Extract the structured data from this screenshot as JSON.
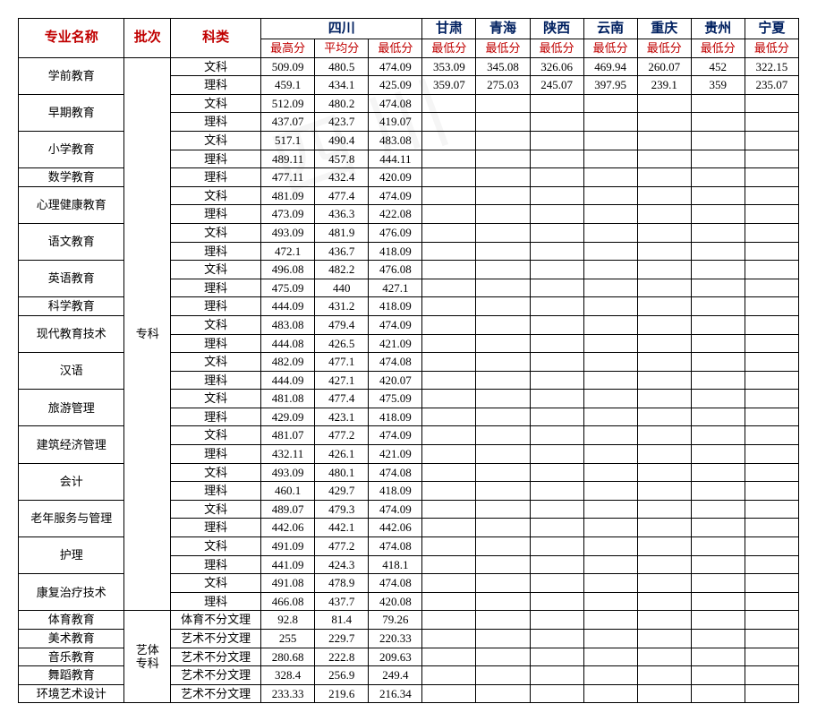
{
  "headers": {
    "major": "专业名称",
    "batch": "批次",
    "subject": "科类",
    "sichuan": "四川",
    "gansu": "甘肃",
    "qinghai": "青海",
    "shaanxi": "陕西",
    "yunnan": "云南",
    "chongqing": "重庆",
    "guizhou": "贵州",
    "ningxia": "宁夏",
    "max": "最高分",
    "avg": "平均分",
    "min": "最低分"
  },
  "batches": {
    "zk": "专科",
    "yt": "艺体\n专科"
  },
  "subjects": {
    "wen": "文科",
    "li": "理科",
    "ty": "体育不分文理",
    "ys": "艺术不分文理"
  },
  "rows": [
    {
      "major": "学前教育",
      "subs": [
        {
          "k": "wen",
          "sc": [
            "509.09",
            "480.5",
            "474.09"
          ],
          "p": [
            "353.09",
            "345.08",
            "326.06",
            "469.94",
            "260.07",
            "452",
            "322.15"
          ]
        },
        {
          "k": "li",
          "sc": [
            "459.1",
            "434.1",
            "425.09"
          ],
          "p": [
            "359.07",
            "275.03",
            "245.07",
            "397.95",
            "239.1",
            "359",
            "235.07"
          ]
        }
      ]
    },
    {
      "major": "早期教育",
      "subs": [
        {
          "k": "wen",
          "sc": [
            "512.09",
            "480.2",
            "474.08"
          ],
          "p": [
            "",
            "",
            "",
            "",
            "",
            "",
            ""
          ]
        },
        {
          "k": "li",
          "sc": [
            "437.07",
            "423.7",
            "419.07"
          ],
          "p": [
            "",
            "",
            "",
            "",
            "",
            "",
            ""
          ]
        }
      ]
    },
    {
      "major": "小学教育",
      "subs": [
        {
          "k": "wen",
          "sc": [
            "517.1",
            "490.4",
            "483.08"
          ],
          "p": [
            "",
            "",
            "",
            "",
            "",
            "",
            ""
          ]
        },
        {
          "k": "li",
          "sc": [
            "489.11",
            "457.8",
            "444.11"
          ],
          "p": [
            "",
            "",
            "",
            "",
            "",
            "",
            ""
          ]
        }
      ]
    },
    {
      "major": "数学教育",
      "subs": [
        {
          "k": "li",
          "sc": [
            "477.11",
            "432.4",
            "420.09"
          ],
          "p": [
            "",
            "",
            "",
            "",
            "",
            "",
            ""
          ]
        }
      ]
    },
    {
      "major": "心理健康教育",
      "subs": [
        {
          "k": "wen",
          "sc": [
            "481.09",
            "477.4",
            "474.09"
          ],
          "p": [
            "",
            "",
            "",
            "",
            "",
            "",
            ""
          ]
        },
        {
          "k": "li",
          "sc": [
            "473.09",
            "436.3",
            "422.08"
          ],
          "p": [
            "",
            "",
            "",
            "",
            "",
            "",
            ""
          ]
        }
      ]
    },
    {
      "major": "语文教育",
      "subs": [
        {
          "k": "wen",
          "sc": [
            "493.09",
            "481.9",
            "476.09"
          ],
          "p": [
            "",
            "",
            "",
            "",
            "",
            "",
            ""
          ]
        },
        {
          "k": "li",
          "sc": [
            "472.1",
            "436.7",
            "418.09"
          ],
          "p": [
            "",
            "",
            "",
            "",
            "",
            "",
            ""
          ]
        }
      ]
    },
    {
      "major": "英语教育",
      "subs": [
        {
          "k": "wen",
          "sc": [
            "496.08",
            "482.2",
            "476.08"
          ],
          "p": [
            "",
            "",
            "",
            "",
            "",
            "",
            ""
          ]
        },
        {
          "k": "li",
          "sc": [
            "475.09",
            "440",
            "427.1"
          ],
          "p": [
            "",
            "",
            "",
            "",
            "",
            "",
            ""
          ]
        }
      ]
    },
    {
      "major": "科学教育",
      "subs": [
        {
          "k": "li",
          "sc": [
            "444.09",
            "431.2",
            "418.09"
          ],
          "p": [
            "",
            "",
            "",
            "",
            "",
            "",
            ""
          ]
        }
      ]
    },
    {
      "major": "现代教育技术",
      "subs": [
        {
          "k": "wen",
          "sc": [
            "483.08",
            "479.4",
            "474.09"
          ],
          "p": [
            "",
            "",
            "",
            "",
            "",
            "",
            ""
          ]
        },
        {
          "k": "li",
          "sc": [
            "444.08",
            "426.5",
            "421.09"
          ],
          "p": [
            "",
            "",
            "",
            "",
            "",
            "",
            ""
          ]
        }
      ]
    },
    {
      "major": "汉语",
      "subs": [
        {
          "k": "wen",
          "sc": [
            "482.09",
            "477.1",
            "474.08"
          ],
          "p": [
            "",
            "",
            "",
            "",
            "",
            "",
            ""
          ]
        },
        {
          "k": "li",
          "sc": [
            "444.09",
            "427.1",
            "420.07"
          ],
          "p": [
            "",
            "",
            "",
            "",
            "",
            "",
            ""
          ]
        }
      ]
    },
    {
      "major": "旅游管理",
      "subs": [
        {
          "k": "wen",
          "sc": [
            "481.08",
            "477.4",
            "475.09"
          ],
          "p": [
            "",
            "",
            "",
            "",
            "",
            "",
            ""
          ]
        },
        {
          "k": "li",
          "sc": [
            "429.09",
            "423.1",
            "418.09"
          ],
          "p": [
            "",
            "",
            "",
            "",
            "",
            "",
            ""
          ]
        }
      ]
    },
    {
      "major": "建筑经济管理",
      "subs": [
        {
          "k": "wen",
          "sc": [
            "481.07",
            "477.2",
            "474.09"
          ],
          "p": [
            "",
            "",
            "",
            "",
            "",
            "",
            ""
          ]
        },
        {
          "k": "li",
          "sc": [
            "432.11",
            "426.1",
            "421.09"
          ],
          "p": [
            "",
            "",
            "",
            "",
            "",
            "",
            ""
          ]
        }
      ]
    },
    {
      "major": "会计",
      "subs": [
        {
          "k": "wen",
          "sc": [
            "493.09",
            "480.1",
            "474.08"
          ],
          "p": [
            "",
            "",
            "",
            "",
            "",
            "",
            ""
          ]
        },
        {
          "k": "li",
          "sc": [
            "460.1",
            "429.7",
            "418.09"
          ],
          "p": [
            "",
            "",
            "",
            "",
            "",
            "",
            ""
          ]
        }
      ]
    },
    {
      "major": "老年服务与管理",
      "subs": [
        {
          "k": "wen",
          "sc": [
            "489.07",
            "479.3",
            "474.09"
          ],
          "p": [
            "",
            "",
            "",
            "",
            "",
            "",
            ""
          ]
        },
        {
          "k": "li",
          "sc": [
            "442.06",
            "442.1",
            "442.06"
          ],
          "p": [
            "",
            "",
            "",
            "",
            "",
            "",
            ""
          ]
        }
      ]
    },
    {
      "major": "护理",
      "subs": [
        {
          "k": "wen",
          "sc": [
            "491.09",
            "477.2",
            "474.08"
          ],
          "p": [
            "",
            "",
            "",
            "",
            "",
            "",
            ""
          ]
        },
        {
          "k": "li",
          "sc": [
            "441.09",
            "424.3",
            "418.1"
          ],
          "p": [
            "",
            "",
            "",
            "",
            "",
            "",
            ""
          ]
        }
      ]
    },
    {
      "major": "康复治疗技术",
      "subs": [
        {
          "k": "wen",
          "sc": [
            "491.08",
            "478.9",
            "474.08"
          ],
          "p": [
            "",
            "",
            "",
            "",
            "",
            "",
            ""
          ]
        },
        {
          "k": "li",
          "sc": [
            "466.08",
            "437.7",
            "420.08"
          ],
          "p": [
            "",
            "",
            "",
            "",
            "",
            "",
            ""
          ]
        }
      ]
    }
  ],
  "rows_yt": [
    {
      "major": "体育教育",
      "k": "ty",
      "sc": [
        "92.8",
        "81.4",
        "79.26"
      ],
      "p": [
        "",
        "",
        "",
        "",
        "",
        "",
        ""
      ]
    },
    {
      "major": "美术教育",
      "k": "ys",
      "sc": [
        "255",
        "229.7",
        "220.33"
      ],
      "p": [
        "",
        "",
        "",
        "",
        "",
        "",
        ""
      ]
    },
    {
      "major": "音乐教育",
      "k": "ys",
      "sc": [
        "280.68",
        "222.8",
        "209.63"
      ],
      "p": [
        "",
        "",
        "",
        "",
        "",
        "",
        ""
      ]
    },
    {
      "major": "舞蹈教育",
      "k": "ys",
      "sc": [
        "328.4",
        "256.9",
        "249.4"
      ],
      "p": [
        "",
        "",
        "",
        "",
        "",
        "",
        ""
      ]
    },
    {
      "major": "环境艺术设计",
      "k": "ys",
      "sc": [
        "233.33",
        "219.6",
        "216.34"
      ],
      "p": [
        "",
        "",
        "",
        "",
        "",
        "",
        ""
      ]
    }
  ],
  "style": {
    "border_color": "#000000",
    "header_red": "#c00000",
    "header_blue": "#002060",
    "font_size_body": 13,
    "font_size_header": 15
  }
}
